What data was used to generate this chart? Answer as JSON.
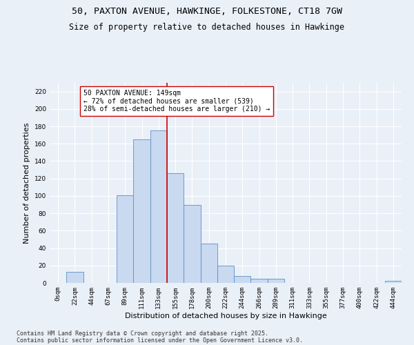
{
  "title_line1": "50, PAXTON AVENUE, HAWKINGE, FOLKESTONE, CT18 7GW",
  "title_line2": "Size of property relative to detached houses in Hawkinge",
  "xlabel": "Distribution of detached houses by size in Hawkinge",
  "ylabel": "Number of detached properties",
  "categories": [
    "0sqm",
    "22sqm",
    "44sqm",
    "67sqm",
    "89sqm",
    "111sqm",
    "133sqm",
    "155sqm",
    "178sqm",
    "200sqm",
    "222sqm",
    "244sqm",
    "266sqm",
    "289sqm",
    "311sqm",
    "333sqm",
    "355sqm",
    "377sqm",
    "400sqm",
    "422sqm",
    "444sqm"
  ],
  "values": [
    0,
    13,
    0,
    0,
    101,
    165,
    175,
    126,
    90,
    45,
    20,
    8,
    5,
    5,
    0,
    0,
    0,
    0,
    0,
    0,
    2
  ],
  "bar_color": "#c9d9f0",
  "bar_edge_color": "#5b8ec4",
  "vline_pos": 6.5,
  "vline_color": "#cc0000",
  "annotation_text": "50 PAXTON AVENUE: 149sqm\n← 72% of detached houses are smaller (539)\n28% of semi-detached houses are larger (210) →",
  "annotation_box_color": "#ffffff",
  "annotation_box_edge": "#cc0000",
  "ylim": [
    0,
    230
  ],
  "yticks": [
    0,
    20,
    40,
    60,
    80,
    100,
    120,
    140,
    160,
    180,
    200,
    220
  ],
  "bg_color": "#eaf0f8",
  "plot_bg_color": "#eaf0f8",
  "grid_color": "#ffffff",
  "footer_line1": "Contains HM Land Registry data © Crown copyright and database right 2025.",
  "footer_line2": "Contains public sector information licensed under the Open Government Licence v3.0.",
  "title_fontsize": 9.5,
  "subtitle_fontsize": 8.5,
  "axis_label_fontsize": 8,
  "tick_fontsize": 6.5,
  "annotation_fontsize": 7,
  "footer_fontsize": 6
}
